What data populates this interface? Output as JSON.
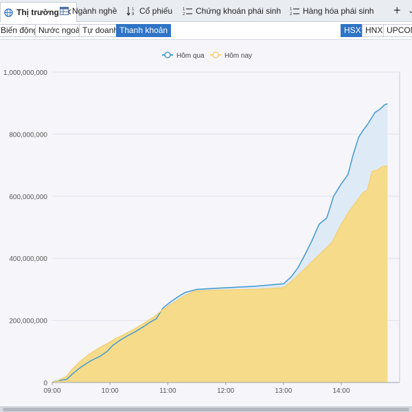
{
  "tabs": [
    {
      "label": "Thị trường",
      "icon": "globe-icon",
      "active": true,
      "closable": true
    },
    {
      "label": "Ngành nghề",
      "icon": "table-icon",
      "active": false
    },
    {
      "label": "Cổ phiếu",
      "icon": "sort-numeric-icon",
      "active": false
    },
    {
      "label": "Chứng khoán phái sinh",
      "icon": "numbered-list-icon",
      "active": false
    },
    {
      "label": "Hàng hóa phái sinh",
      "icon": "numbered-list-icon",
      "active": false
    }
  ],
  "view_buttons": [
    "Biến động",
    "Nước ngoài",
    "Tự doanh",
    "Thanh khoản"
  ],
  "active_view": "Thanh khoản",
  "exchange_buttons": [
    "HSX",
    "HNX",
    "UPCOM"
  ],
  "active_exchange": "HSX",
  "chart_data": {
    "type": "area",
    "title": "",
    "xlabel": "",
    "ylabel": "",
    "ylim": [
      0,
      1000000000
    ],
    "y_ticks": [
      0,
      200000000,
      400000000,
      600000000,
      800000000,
      1000000000
    ],
    "y_tick_labels": [
      "0",
      "200,000,000",
      "400,000,000",
      "600,000,000",
      "800,000,000",
      "1,000,000,000"
    ],
    "x_ticks": [
      "09:00",
      "10:00",
      "11:00",
      "12:00",
      "13:00",
      "14:00"
    ],
    "legend_position": "top-center",
    "grid": true,
    "series": [
      {
        "name": "Hôm qua",
        "color": "#4a9cd0",
        "fill": "#dde9f6",
        "points": [
          [
            "09:00",
            0
          ],
          [
            "09:04",
            5000000
          ],
          [
            "09:15",
            10000000
          ],
          [
            "09:22",
            30000000
          ],
          [
            "09:30",
            50000000
          ],
          [
            "09:40",
            70000000
          ],
          [
            "09:50",
            85000000
          ],
          [
            "09:57",
            100000000
          ],
          [
            "10:03",
            120000000
          ],
          [
            "10:10",
            135000000
          ],
          [
            "10:18",
            150000000
          ],
          [
            "10:27",
            165000000
          ],
          [
            "10:35",
            180000000
          ],
          [
            "10:42",
            195000000
          ],
          [
            "10:48",
            205000000
          ],
          [
            "10:55",
            240000000
          ],
          [
            "11:03",
            260000000
          ],
          [
            "11:10",
            275000000
          ],
          [
            "11:18",
            290000000
          ],
          [
            "11:30",
            300000000
          ],
          [
            "12:00",
            305000000
          ],
          [
            "12:30",
            310000000
          ],
          [
            "13:00",
            318000000
          ],
          [
            "13:08",
            340000000
          ],
          [
            "13:15",
            370000000
          ],
          [
            "13:22",
            410000000
          ],
          [
            "13:30",
            460000000
          ],
          [
            "13:37",
            510000000
          ],
          [
            "13:45",
            530000000
          ],
          [
            "13:52",
            600000000
          ],
          [
            "14:00",
            640000000
          ],
          [
            "14:07",
            670000000
          ],
          [
            "14:12",
            730000000
          ],
          [
            "14:18",
            790000000
          ],
          [
            "14:22",
            810000000
          ],
          [
            "14:27",
            830000000
          ],
          [
            "14:35",
            870000000
          ],
          [
            "14:40",
            880000000
          ],
          [
            "14:45",
            895000000
          ],
          [
            "14:48",
            898000000
          ]
        ]
      },
      {
        "name": "Hôm nay",
        "color": "#f3d27a",
        "fill": "#f6dc8a",
        "points": [
          [
            "09:00",
            0
          ],
          [
            "09:05",
            5000000
          ],
          [
            "09:15",
            20000000
          ],
          [
            "09:20",
            40000000
          ],
          [
            "09:28",
            65000000
          ],
          [
            "09:38",
            90000000
          ],
          [
            "09:48",
            110000000
          ],
          [
            "09:57",
            125000000
          ],
          [
            "10:05",
            140000000
          ],
          [
            "10:15",
            155000000
          ],
          [
            "10:25",
            172000000
          ],
          [
            "10:35",
            190000000
          ],
          [
            "10:45",
            210000000
          ],
          [
            "10:55",
            235000000
          ],
          [
            "11:05",
            255000000
          ],
          [
            "11:15",
            275000000
          ],
          [
            "11:28",
            295000000
          ],
          [
            "12:00",
            298000000
          ],
          [
            "12:30",
            300000000
          ],
          [
            "13:00",
            305000000
          ],
          [
            "13:10",
            330000000
          ],
          [
            "13:20",
            360000000
          ],
          [
            "13:30",
            390000000
          ],
          [
            "13:40",
            420000000
          ],
          [
            "13:50",
            450000000
          ],
          [
            "14:00",
            510000000
          ],
          [
            "14:08",
            550000000
          ],
          [
            "14:15",
            580000000
          ],
          [
            "14:22",
            610000000
          ],
          [
            "14:27",
            620000000
          ],
          [
            "14:32",
            680000000
          ],
          [
            "14:38",
            685000000
          ],
          [
            "14:42",
            695000000
          ],
          [
            "14:48",
            698000000
          ]
        ]
      }
    ]
  }
}
